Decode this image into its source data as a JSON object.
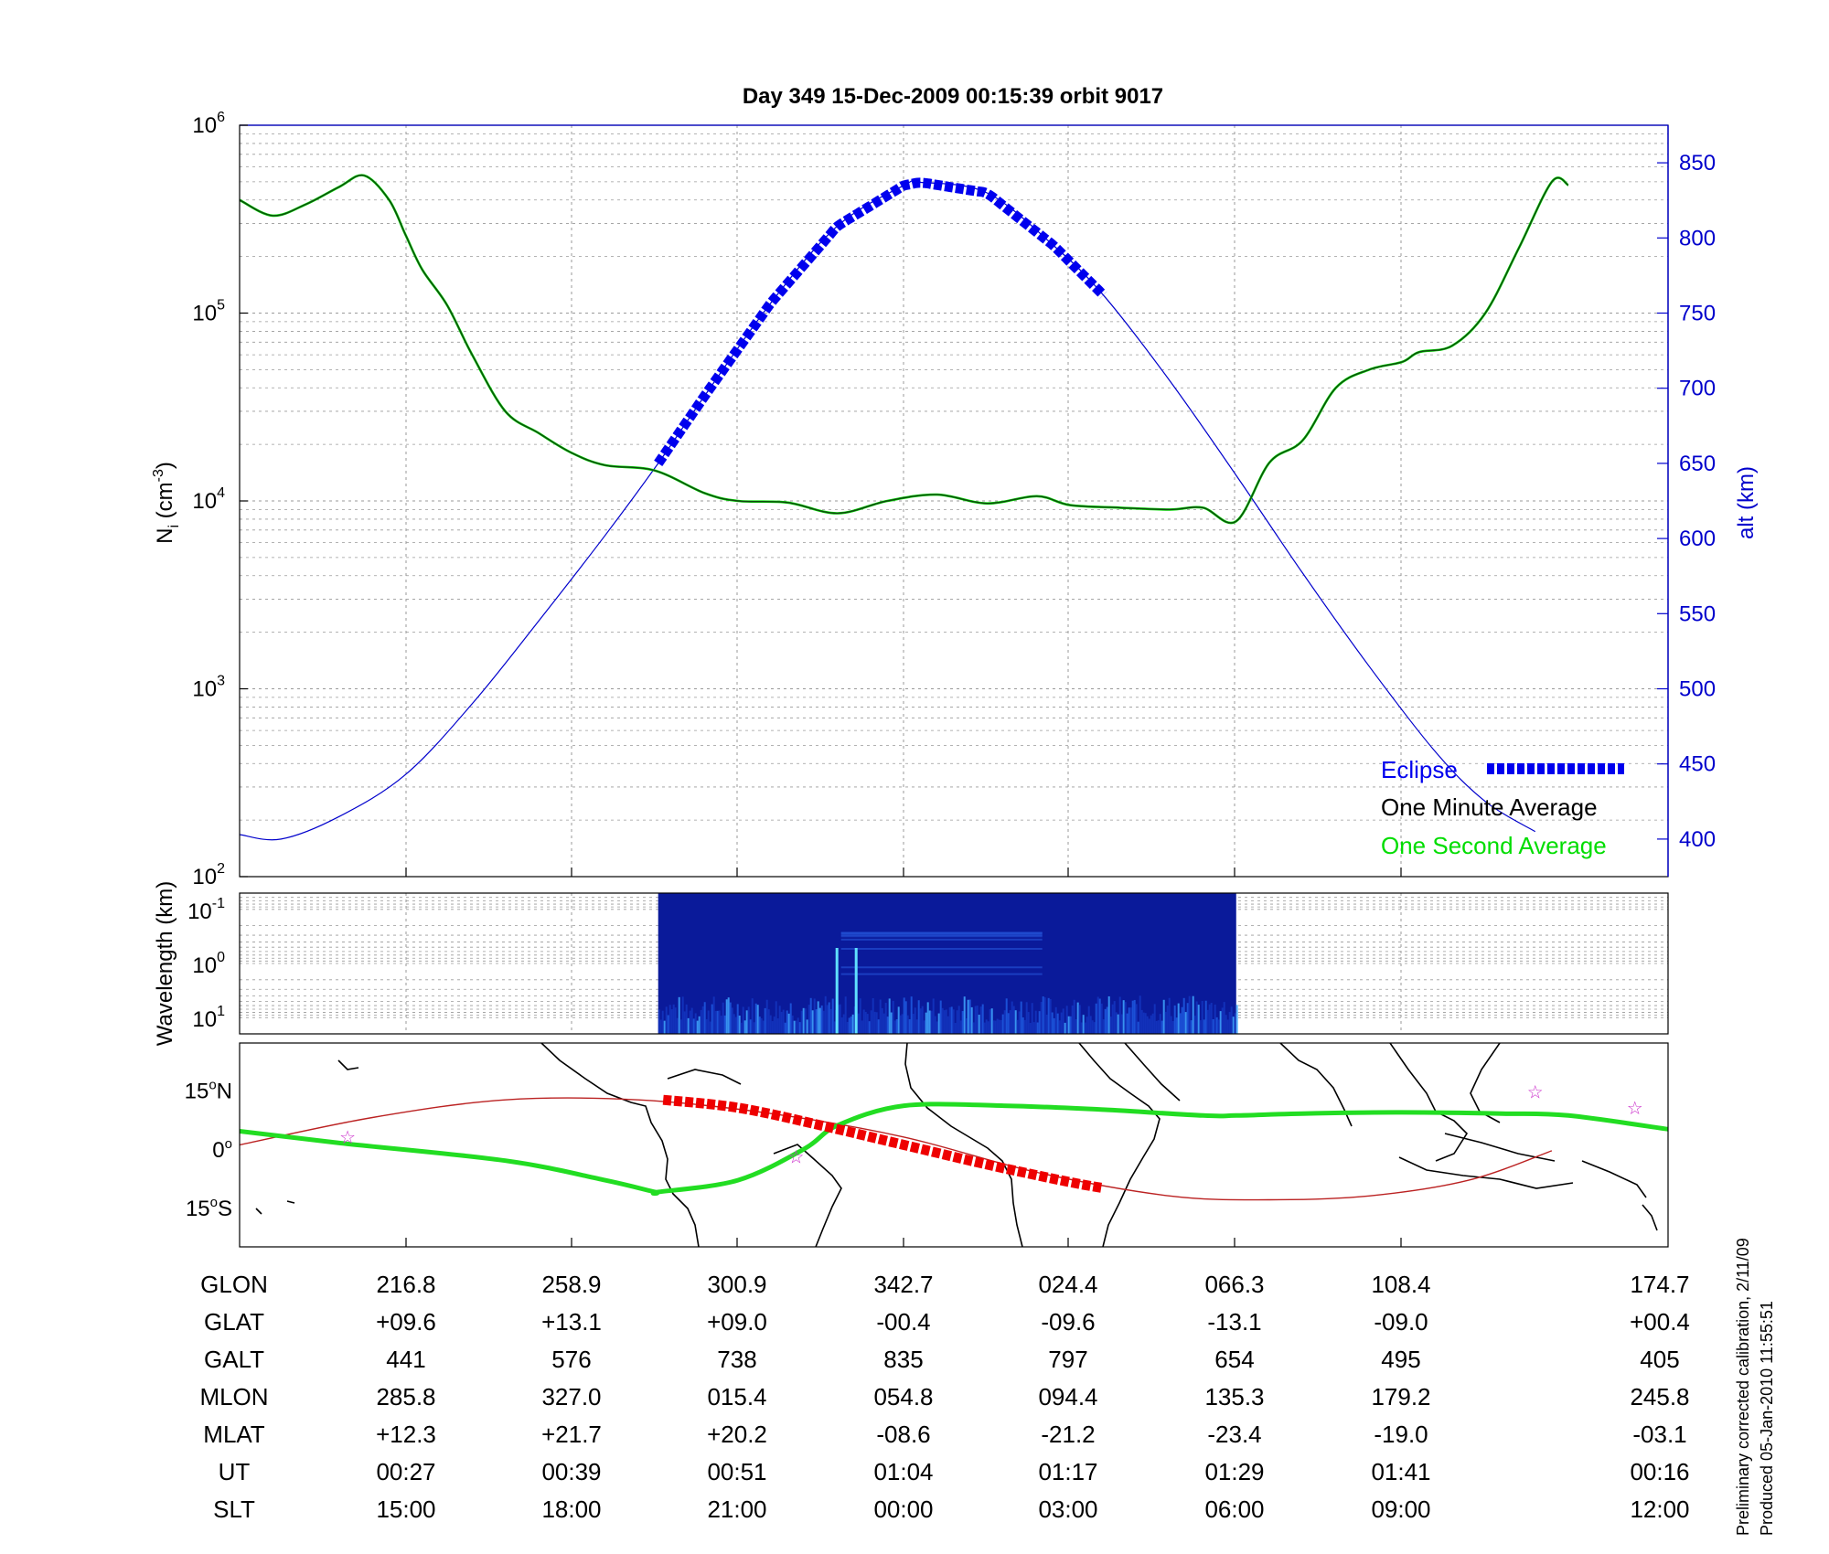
{
  "title": "Day 349  15-Dec-2009 00:15:39   orbit 9017",
  "colors": {
    "eclipse": "#0000ee",
    "minute_avg": "#000000",
    "second_avg": "#00dd00",
    "alt_axis": "#0000cc",
    "track_sun": "#22dd22",
    "track_eclipse": "#ee0000",
    "mag_equator": "#bb2222",
    "star": "#cc33cc"
  },
  "legend": {
    "eclipse": "Eclipse",
    "minute": "One Minute Average",
    "second": "One Second Average"
  },
  "notes": {
    "line1": "Preliminary corrected calibration, 2/11/09",
    "line2": "Produced 05-Jan-2010 11:55:51"
  },
  "chart_data": [
    {
      "type": "line",
      "ylabel_left": "N_i (cm^-3)",
      "ylabel_left_base": "N",
      "ylabel_left_sub": "i",
      "ylabel_left_unit": "(cm",
      "ylabel_left_exp": "-3",
      "ylabel_left_close": ")",
      "ylabel_right": "alt (km)",
      "yscale_left": "log",
      "ylim_left": [
        100,
        1000000
      ],
      "yticks_left": [
        {
          "base": "10",
          "exp": "2",
          "value": 100
        },
        {
          "base": "10",
          "exp": "3",
          "value": 1000
        },
        {
          "base": "10",
          "exp": "4",
          "value": 10000
        },
        {
          "base": "10",
          "exp": "5",
          "value": 100000
        },
        {
          "base": "10",
          "exp": "6",
          "value": 1000000
        }
      ],
      "ylim_right": [
        375,
        875
      ],
      "yticks_right": [
        "400",
        "450",
        "500",
        "550",
        "600",
        "650",
        "700",
        "750",
        "800",
        "850"
      ],
      "grid": true,
      "legend_position": "bottom-right",
      "x_domain": [
        0,
        8.6
      ],
      "series": [
        {
          "name": "One Minute Average",
          "x": [
            0,
            0.2,
            0.4,
            0.6,
            0.75,
            0.9,
            1.0,
            1.1,
            1.25,
            1.4,
            1.6,
            1.8,
            2.0,
            2.2,
            2.5,
            2.8,
            3.0,
            3.3,
            3.6,
            3.9,
            4.2,
            4.5,
            4.8,
            5.0,
            5.3,
            5.6,
            5.8,
            6.0,
            6.2,
            6.4,
            6.6,
            6.8,
            7.0,
            7.1,
            7.3,
            7.5,
            7.7,
            7.9,
            8.0
          ],
          "y": [
            400000,
            330000,
            380000,
            470000,
            540000,
            400000,
            260000,
            170000,
            110000,
            60000,
            30000,
            23000,
            18000,
            15500,
            14500,
            11000,
            10000,
            9800,
            8600,
            10000,
            10800,
            9700,
            10600,
            9500,
            9200,
            9000,
            9200,
            7800,
            16000,
            21000,
            40000,
            50000,
            55000,
            62000,
            67000,
            100000,
            220000,
            500000,
            480000
          ],
          "values_note": "density"
        },
        {
          "name": "alt",
          "x": [
            0,
            0.25,
            0.6,
            1.0,
            1.4,
            1.8,
            2.2,
            2.52,
            2.8,
            3.2,
            3.6,
            4.0,
            4.1,
            4.5,
            4.9,
            5.2,
            5.6,
            6.0,
            6.4,
            6.8,
            7.2,
            7.5,
            7.8
          ],
          "y": [
            403,
            400,
            415,
            443,
            490,
            545,
            602,
            650,
            695,
            757,
            808,
            835,
            837,
            830,
            795,
            762,
            705,
            642,
            577,
            515,
            458,
            425,
            405
          ],
          "values_note": "altitude km"
        },
        {
          "name": "Eclipse",
          "x_start": 2.52,
          "x_end": 5.2,
          "values_note": "altitude km during eclipse"
        }
      ]
    },
    {
      "type": "heatmap",
      "ylabel": "Wavelength (km)",
      "yscale": "log",
      "yticks": [
        {
          "base": "10",
          "exp": "-1",
          "value": 0.1
        },
        {
          "base": "10",
          "exp": "0",
          "value": 1
        },
        {
          "base": "10",
          "exp": "1",
          "value": 10
        }
      ],
      "ylim": [
        0.05,
        20
      ],
      "x_start": 2.52,
      "x_end": 6.0
    },
    {
      "type": "scatter",
      "ylabel_ticks": [
        {
          "label": "15",
          "deg": "o",
          "hem": "N",
          "value": 15
        },
        {
          "label": "0",
          "deg": "o",
          "hem": "",
          "value": 0
        },
        {
          "label": "15",
          "deg": "o",
          "hem": "S",
          "value": -15
        }
      ],
      "ylim": [
        -25,
        27
      ],
      "track_x": [
        0,
        0.6,
        1.6,
        2.2,
        2.5,
        2.52,
        3.0,
        3.4,
        3.6,
        4.0,
        4.6,
        5.2,
        5.8,
        6.0,
        6.4,
        7.0,
        7.6,
        8.0,
        8.6
      ],
      "track_lat": [
        4.5,
        1.5,
        -3,
        -8,
        -11,
        -11,
        -8,
        0,
        6,
        11,
        11,
        10,
        8.5,
        8.5,
        9,
        9.3,
        9,
        8.5,
        5
      ],
      "eclipse_track_x": [
        2.55,
        3.0,
        3.5,
        4.0,
        4.5,
        5.0,
        5.2
      ],
      "eclipse_track_lat": [
        12.5,
        10.5,
        6,
        1,
        -4,
        -8.5,
        -10
      ],
      "mag_equator_x": [
        0,
        0.8,
        1.6,
        2.4,
        3.2,
        4.0,
        4.8,
        5.6,
        6.2,
        6.8,
        7.4,
        7.9
      ],
      "mag_equator_lat": [
        1,
        8,
        12.5,
        12.5,
        9,
        3,
        -6,
        -12,
        -13,
        -12,
        -8,
        -0.5
      ],
      "stars": [
        {
          "x": 0.65,
          "lat": 3
        },
        {
          "x": 3.35,
          "lat": -2
        },
        {
          "x": 7.8,
          "lat": 14.5
        },
        {
          "x": 8.4,
          "lat": 10.5
        }
      ]
    }
  ],
  "table": {
    "labels": [
      "GLON",
      "GLAT",
      "GALT",
      "MLON",
      "MLAT",
      "UT",
      "SLT"
    ],
    "columns": [
      [
        "216.8",
        "+09.6",
        "441",
        "285.8",
        "+12.3",
        "00:27",
        "15:00"
      ],
      [
        "258.9",
        "+13.1",
        "576",
        "327.0",
        "+21.7",
        "00:39",
        "18:00"
      ],
      [
        "300.9",
        "+09.0",
        "738",
        "015.4",
        "+20.2",
        "00:51",
        "21:00"
      ],
      [
        "342.7",
        "-00.4",
        "835",
        "054.8",
        "-08.6",
        "01:04",
        "00:00"
      ],
      [
        "024.4",
        "-09.6",
        "797",
        "094.4",
        "-21.2",
        "01:17",
        "03:00"
      ],
      [
        "066.3",
        "-13.1",
        "654",
        "135.3",
        "-23.4",
        "01:29",
        "06:00"
      ],
      [
        "108.4",
        "-09.0",
        "495",
        "179.2",
        "-19.0",
        "01:41",
        "09:00"
      ],
      [
        "174.7",
        "+00.4",
        "405",
        "245.8",
        "-03.1",
        "00:16",
        "12:00"
      ]
    ]
  }
}
